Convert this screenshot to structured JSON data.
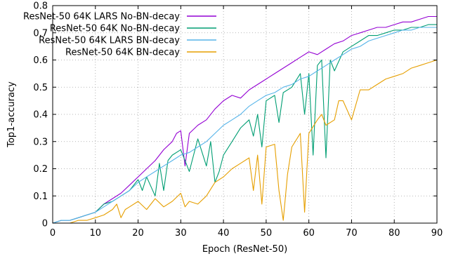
{
  "chart_data": {
    "type": "line",
    "xlabel": "Epoch (ResNet-50)",
    "ylabel": "Top1-accuracy",
    "xlim": [
      0,
      90
    ],
    "ylim": [
      0,
      0.8
    ],
    "xticks": [
      0,
      10,
      20,
      30,
      40,
      50,
      60,
      70,
      80,
      90
    ],
    "yticks": [
      0,
      0.1,
      0.2,
      0.3,
      0.4,
      0.5,
      0.6,
      0.7,
      0.8
    ],
    "ytick_labels": [
      "0",
      "0.1",
      "0.2",
      "0.3",
      "0.4",
      "0.5",
      "0.6",
      "0.7",
      "0.8"
    ],
    "grid": true,
    "legend_position": "top-left",
    "series": [
      {
        "name": "ResNet-50 64K LARS No-BN-decay",
        "color": "#9400d3",
        "x": [
          0,
          2,
          4,
          6,
          8,
          10,
          12,
          14,
          16,
          18,
          20,
          22,
          24,
          26,
          28,
          29,
          30,
          31,
          32,
          34,
          36,
          38,
          40,
          42,
          44,
          46,
          48,
          50,
          52,
          54,
          56,
          58,
          60,
          62,
          64,
          66,
          68,
          70,
          72,
          74,
          76,
          78,
          80,
          82,
          84,
          86,
          88,
          90
        ],
        "y": [
          0,
          0.01,
          0.01,
          0.02,
          0.03,
          0.04,
          0.07,
          0.09,
          0.11,
          0.14,
          0.17,
          0.2,
          0.23,
          0.27,
          0.3,
          0.33,
          0.34,
          0.21,
          0.33,
          0.36,
          0.38,
          0.42,
          0.45,
          0.47,
          0.46,
          0.49,
          0.51,
          0.53,
          0.55,
          0.57,
          0.59,
          0.61,
          0.63,
          0.62,
          0.64,
          0.66,
          0.67,
          0.69,
          0.7,
          0.71,
          0.72,
          0.72,
          0.73,
          0.74,
          0.74,
          0.75,
          0.76,
          0.76
        ]
      },
      {
        "name": "ResNet-50 64K No-BN-decay",
        "color": "#009e73",
        "x": [
          0,
          2,
          4,
          6,
          8,
          10,
          12,
          14,
          16,
          18,
          20,
          21,
          22,
          24,
          25,
          26,
          27,
          28,
          30,
          32,
          34,
          36,
          37,
          38,
          39,
          40,
          42,
          44,
          46,
          47,
          48,
          49,
          50,
          52,
          53,
          54,
          56,
          58,
          59,
          60,
          61,
          62,
          63,
          64,
          65,
          66,
          68,
          70,
          72,
          74,
          76,
          78,
          80,
          82,
          84,
          86,
          88,
          90
        ],
        "y": [
          0,
          0.01,
          0.01,
          0.02,
          0.03,
          0.04,
          0.07,
          0.08,
          0.1,
          0.12,
          0.16,
          0.12,
          0.17,
          0.1,
          0.22,
          0.12,
          0.23,
          0.25,
          0.27,
          0.19,
          0.31,
          0.21,
          0.3,
          0.15,
          0.19,
          0.25,
          0.3,
          0.35,
          0.38,
          0.32,
          0.4,
          0.28,
          0.45,
          0.47,
          0.37,
          0.48,
          0.5,
          0.55,
          0.4,
          0.55,
          0.25,
          0.58,
          0.6,
          0.24,
          0.6,
          0.56,
          0.63,
          0.65,
          0.67,
          0.69,
          0.69,
          0.7,
          0.71,
          0.71,
          0.72,
          0.72,
          0.73,
          0.73
        ]
      },
      {
        "name": "ResNet-50 64K LARS BN-decay",
        "color": "#56b4e9",
        "x": [
          0,
          2,
          4,
          6,
          8,
          10,
          12,
          14,
          16,
          18,
          20,
          22,
          24,
          26,
          28,
          30,
          32,
          34,
          36,
          38,
          40,
          42,
          44,
          46,
          48,
          50,
          52,
          54,
          56,
          58,
          60,
          62,
          64,
          66,
          68,
          70,
          72,
          74,
          76,
          78,
          80,
          82,
          84,
          86,
          88,
          90
        ],
        "y": [
          0,
          0.01,
          0.01,
          0.02,
          0.03,
          0.04,
          0.06,
          0.08,
          0.1,
          0.12,
          0.15,
          0.17,
          0.19,
          0.21,
          0.23,
          0.25,
          0.26,
          0.28,
          0.3,
          0.33,
          0.36,
          0.38,
          0.4,
          0.43,
          0.45,
          0.47,
          0.48,
          0.5,
          0.51,
          0.53,
          0.54,
          0.56,
          0.58,
          0.6,
          0.62,
          0.64,
          0.65,
          0.67,
          0.68,
          0.69,
          0.7,
          0.71,
          0.71,
          0.72,
          0.72,
          0.72
        ]
      },
      {
        "name": "ResNet-50 64K BN-decay",
        "color": "#e69f00",
        "x": [
          0,
          2,
          4,
          6,
          8,
          10,
          12,
          14,
          15,
          16,
          17,
          18,
          20,
          22,
          24,
          26,
          28,
          30,
          31,
          32,
          34,
          36,
          38,
          40,
          42,
          44,
          46,
          47,
          48,
          49,
          50,
          52,
          53,
          54,
          55,
          56,
          58,
          59,
          60,
          62,
          63,
          64,
          66,
          67,
          68,
          70,
          72,
          74,
          76,
          78,
          80,
          82,
          84,
          86,
          88,
          90
        ],
        "y": [
          0,
          0,
          0,
          0.01,
          0.01,
          0.02,
          0.03,
          0.05,
          0.07,
          0.02,
          0.05,
          0.06,
          0.08,
          0.05,
          0.09,
          0.06,
          0.08,
          0.11,
          0.06,
          0.08,
          0.07,
          0.1,
          0.15,
          0.17,
          0.2,
          0.22,
          0.24,
          0.12,
          0.25,
          0.07,
          0.28,
          0.29,
          0.12,
          0.01,
          0.18,
          0.28,
          0.33,
          0.04,
          0.33,
          0.38,
          0.4,
          0.36,
          0.38,
          0.45,
          0.45,
          0.38,
          0.49,
          0.49,
          0.51,
          0.53,
          0.54,
          0.55,
          0.57,
          0.58,
          0.59,
          0.6
        ]
      }
    ]
  }
}
